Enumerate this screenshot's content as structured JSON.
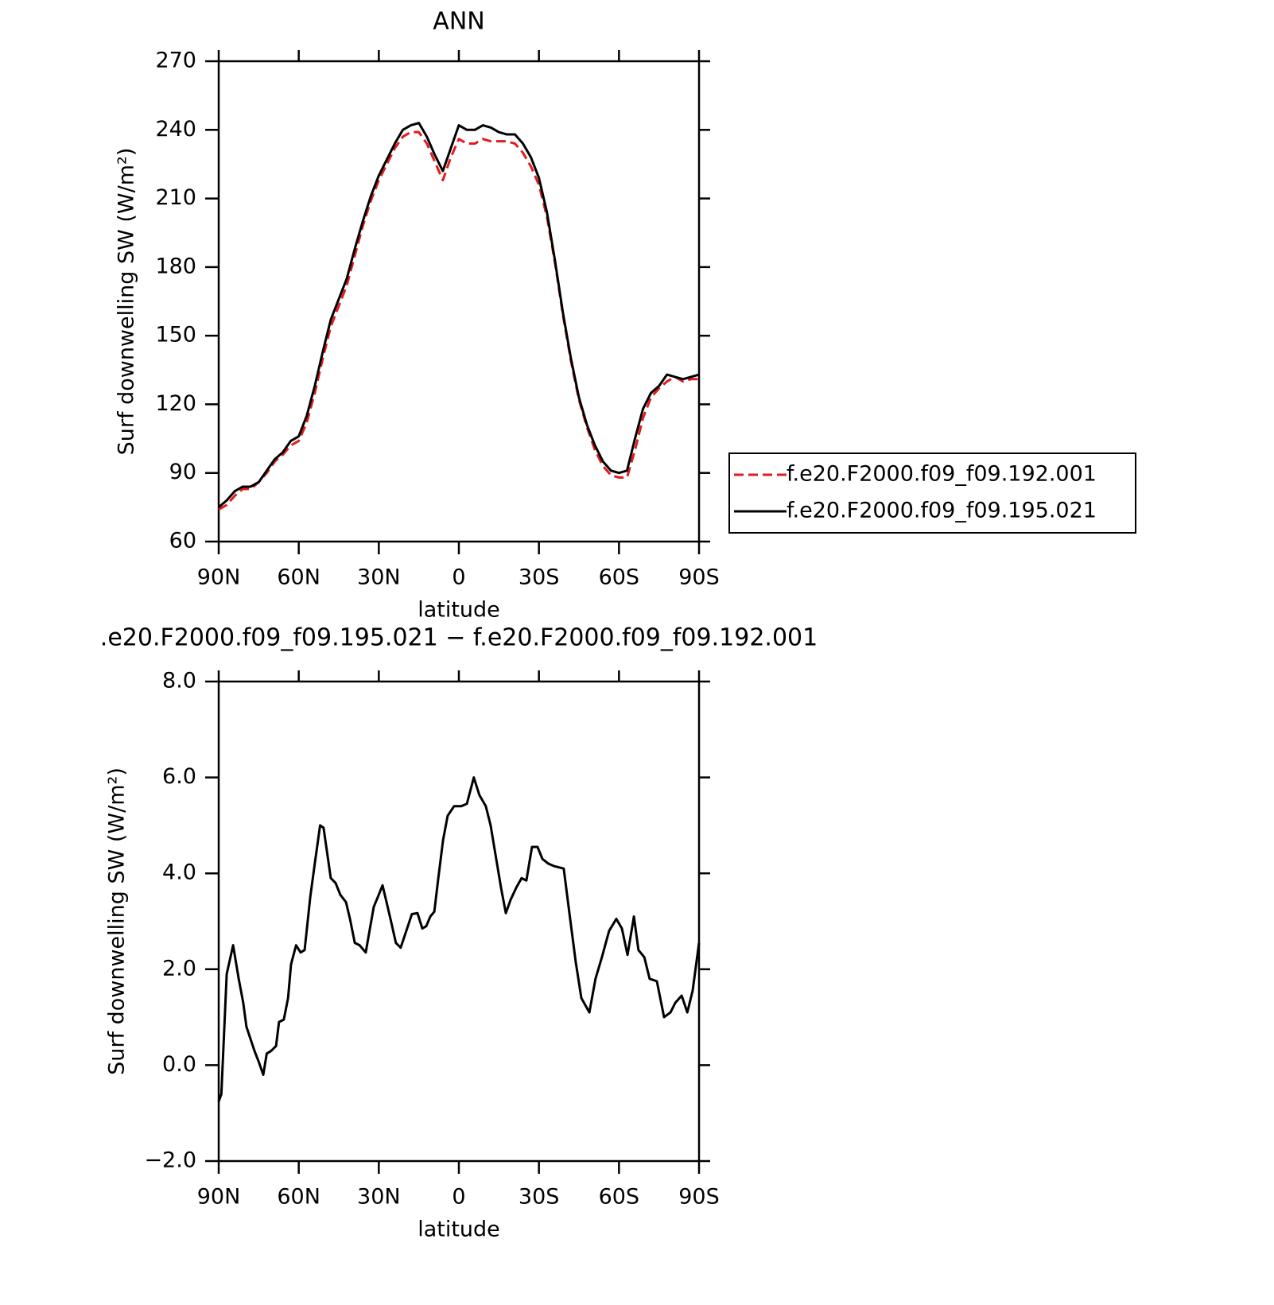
{
  "chart_data": [
    {
      "type": "line",
      "title": "ANN",
      "xlabel": "latitude",
      "ylabel": "Surf downwelling SW (W/m²)",
      "xlim": [
        90,
        -90
      ],
      "ylim": [
        60,
        270
      ],
      "xticks": [
        {
          "value": 90,
          "label": "90N"
        },
        {
          "value": 60,
          "label": "60N"
        },
        {
          "value": 30,
          "label": "30N"
        },
        0,
        {
          "value": -30,
          "label": "30S"
        },
        {
          "value": -60,
          "label": "60S"
        },
        {
          "value": -90,
          "label": "90S"
        }
      ],
      "yticks": [
        60,
        90,
        120,
        150,
        180,
        210,
        240,
        270
      ],
      "legend": "right",
      "x": [
        90,
        87,
        84,
        81,
        78,
        75,
        72,
        69,
        66,
        63,
        60,
        57,
        54,
        51,
        48,
        45,
        42,
        39,
        36,
        33,
        30,
        27,
        24,
        21,
        18,
        15,
        12,
        9,
        6,
        3,
        0,
        -3,
        -6,
        -9,
        -12,
        -15,
        -18,
        -21,
        -24,
        -27,
        -30,
        -33,
        -36,
        -39,
        -42,
        -45,
        -48,
        -51,
        -54,
        -57,
        -60,
        -63,
        -66,
        -69,
        -72,
        -75,
        -78,
        -81,
        -84,
        -87,
        -90
      ],
      "series": [
        {
          "name": "f.e20.F2000.f09_f09.192.001",
          "color": "#e41a1c",
          "linestyle": "dashed",
          "values": [
            74,
            76,
            80,
            83,
            83,
            86,
            90,
            95,
            98,
            102,
            104,
            112,
            125,
            140,
            154,
            163,
            172,
            185,
            198,
            209,
            218,
            225,
            232,
            237,
            239,
            239,
            234,
            226,
            218,
            228,
            236,
            234,
            234,
            236,
            235,
            235,
            235,
            234,
            230,
            224,
            216,
            202,
            182,
            159,
            139,
            122,
            110,
            100,
            93,
            89,
            88,
            88,
            100,
            114,
            123,
            127,
            130,
            132,
            130,
            131,
            131
          ]
        },
        {
          "name": "f.e20.F2000.f09_f09.195.021",
          "color": "#000000",
          "linestyle": "solid",
          "values": [
            75,
            78,
            82,
            84,
            84,
            86,
            91,
            96,
            99,
            104,
            106,
            115,
            128,
            143,
            157,
            166,
            175,
            188,
            200,
            211,
            220,
            227,
            234,
            240,
            242,
            243,
            237,
            229,
            222,
            232,
            242,
            240,
            240,
            242,
            241,
            239,
            238,
            238,
            234,
            228,
            219,
            204,
            183,
            160,
            140,
            123,
            111,
            102,
            95,
            91,
            90,
            91,
            105,
            118,
            125,
            128,
            133,
            132,
            131,
            132,
            133
          ]
        }
      ]
    },
    {
      "type": "line",
      "title": ".e20.F2000.f09_f09.195.021 − f.e20.F2000.f09_f09.192.001",
      "xlabel": "latitude",
      "ylabel": "Surf downwelling SW (W/m²)",
      "xlim": [
        90,
        -90
      ],
      "ylim": [
        -2,
        8
      ],
      "xticks": [
        {
          "value": 90,
          "label": "90N"
        },
        {
          "value": 60,
          "label": "60N"
        },
        {
          "value": 30,
          "label": "30N"
        },
        0,
        {
          "value": -30,
          "label": "30S"
        },
        {
          "value": -60,
          "label": "60S"
        },
        {
          "value": -90,
          "label": "90S"
        }
      ],
      "yticks": [
        {
          "value": -2,
          "label": "−2.0"
        },
        {
          "value": 0,
          "label": "0.0"
        },
        {
          "value": 2,
          "label": "2.0"
        },
        {
          "value": 4,
          "label": "4.0"
        },
        {
          "value": 6,
          "label": "6.0"
        },
        {
          "value": 8,
          "label": "8.0"
        }
      ],
      "x": [
        90,
        89,
        87,
        84.6,
        82.5,
        80.8,
        79.6,
        77.8,
        76.6,
        75,
        73.3,
        72,
        70.3,
        68.5,
        67.4,
        65.6,
        64,
        62.9,
        61,
        59.3,
        57.8,
        55.7,
        54,
        52,
        50.7,
        48,
        46.2,
        44.4,
        42.3,
        40.8,
        39,
        37.2,
        34.9,
        31.9,
        30.4,
        28.6,
        27.1,
        25.3,
        23.6,
        21.8,
        19.7,
        17.6,
        15.5,
        13.7,
        12.2,
        10.7,
        9.2,
        7.7,
        5.9,
        4.2,
        1.8,
        -0.9,
        -3,
        -5.6,
        -7.7,
        -10.1,
        -11.9,
        -13.7,
        -15.8,
        -17.6,
        -19.4,
        -21.5,
        -23.5,
        -25.3,
        -27.4,
        -29.5,
        -31.3,
        -33.6,
        -35.7,
        -39.3,
        -41.7,
        -43.8,
        -45.9,
        -48.9,
        -51.2,
        -53.6,
        -56.3,
        -59,
        -61.1,
        -63.2,
        -65.6,
        -67.3,
        -69.5,
        -71.5,
        -74.2,
        -76.9,
        -79.3,
        -81.1,
        -83.5,
        -85.6,
        -87.6,
        -90
      ],
      "series": [
        {
          "color": "#000000",
          "linestyle": "solid",
          "values": [
            -0.76,
            -0.6,
            1.9,
            2.5,
            1.8,
            1.3,
            0.8,
            0.5,
            0.3,
            0.07,
            -0.2,
            0.24,
            0.3,
            0.4,
            0.9,
            0.95,
            1.4,
            2.1,
            2.5,
            2.35,
            2.4,
            3.5,
            4.2,
            5.0,
            4.95,
            3.9,
            3.8,
            3.55,
            3.4,
            3.05,
            2.55,
            2.5,
            2.35,
            3.3,
            3.5,
            3.75,
            3.4,
            2.97,
            2.55,
            2.45,
            2.8,
            3.15,
            3.17,
            2.85,
            2.9,
            3.1,
            3.2,
            3.9,
            4.7,
            5.2,
            5.4,
            5.4,
            5.45,
            6.0,
            5.63,
            5.4,
            5.0,
            4.4,
            3.7,
            3.17,
            3.45,
            3.7,
            3.9,
            3.85,
            4.55,
            4.55,
            4.3,
            4.2,
            4.15,
            4.1,
            3.05,
            2.15,
            1.4,
            1.1,
            1.8,
            2.25,
            2.8,
            3.05,
            2.85,
            2.3,
            3.1,
            2.4,
            2.25,
            1.8,
            1.75,
            1.0,
            1.1,
            1.3,
            1.45,
            1.1,
            1.55,
            2.55
          ]
        }
      ]
    }
  ]
}
